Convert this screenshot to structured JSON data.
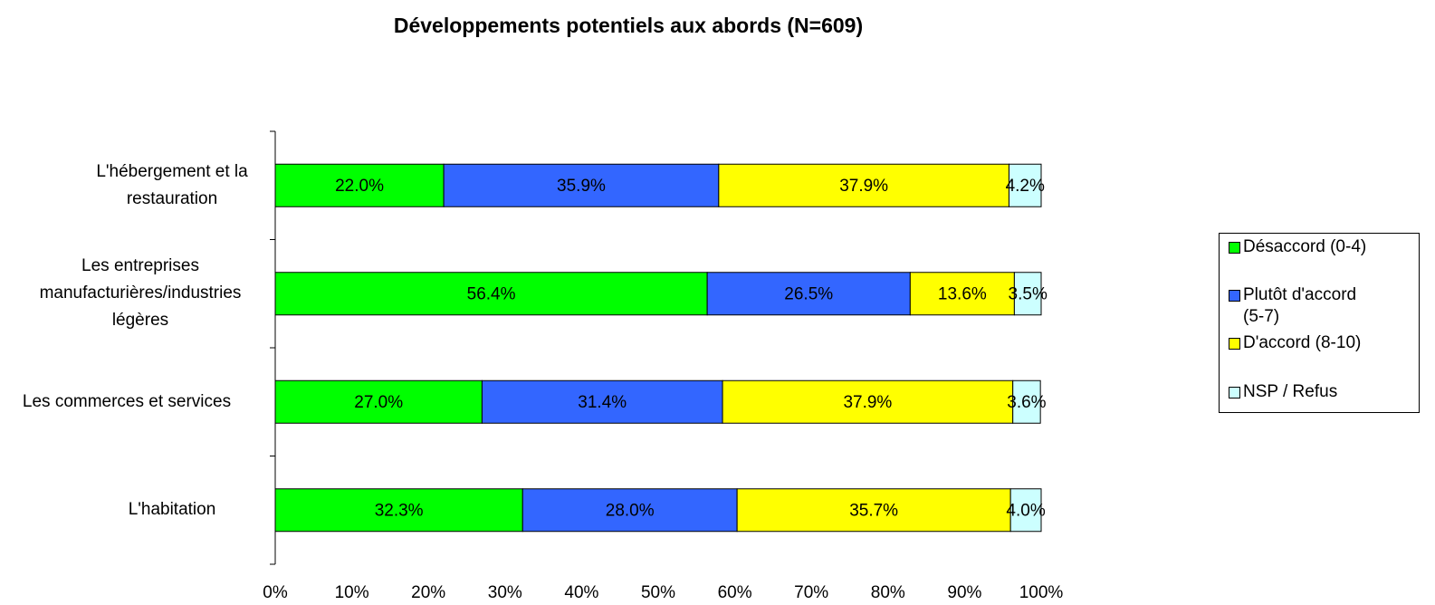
{
  "chart_data": {
    "type": "stacked-bar-horizontal",
    "title": "Développements potentiels aux abords (N=609)",
    "categories": [
      "L'hébergement et la restauration",
      "Les entreprises manufacturières/industries légères",
      "Les commerces et services",
      "L'habitation"
    ],
    "series": [
      {
        "name": "Désaccord (0-4)",
        "color": "#00ff00",
        "values": [
          22.0,
          56.4,
          27.0,
          32.3
        ],
        "value_labels": [
          "22.0%",
          "56.4%",
          "27.0%",
          "32.3%"
        ]
      },
      {
        "name": "Plutôt d'accord (5-7)",
        "color": "#3366ff",
        "values": [
          35.9,
          26.5,
          31.4,
          28.0
        ],
        "value_labels": [
          "35.9%",
          "26.5%",
          "31.4%",
          "28.0%"
        ]
      },
      {
        "name": "D'accord (8-10)",
        "color": "#ffff00",
        "values": [
          37.9,
          13.6,
          37.9,
          35.7
        ],
        "value_labels": [
          "37.9%",
          "13.6%",
          "37.9%",
          "35.7%"
        ]
      },
      {
        "name": "NSP / Refus",
        "color": "#ccffff",
        "values": [
          4.2,
          3.5,
          3.6,
          4.0
        ],
        "value_labels": [
          "4.2%",
          "3.5%",
          "3.6%",
          "4.0%"
        ]
      }
    ],
    "xlim": [
      0,
      100
    ],
    "xticks": [
      {
        "value": 0,
        "label": "0%"
      },
      {
        "value": 10,
        "label": "10%"
      },
      {
        "value": 20,
        "label": "20%"
      },
      {
        "value": 30,
        "label": "30%"
      },
      {
        "value": 40,
        "label": "40%"
      },
      {
        "value": 50,
        "label": "50%"
      },
      {
        "value": 60,
        "label": "60%"
      },
      {
        "value": 70,
        "label": "70%"
      },
      {
        "value": 80,
        "label": "80%"
      },
      {
        "value": 90,
        "label": "90%"
      },
      {
        "value": 100,
        "label": "100%"
      }
    ],
    "legend": "right"
  }
}
